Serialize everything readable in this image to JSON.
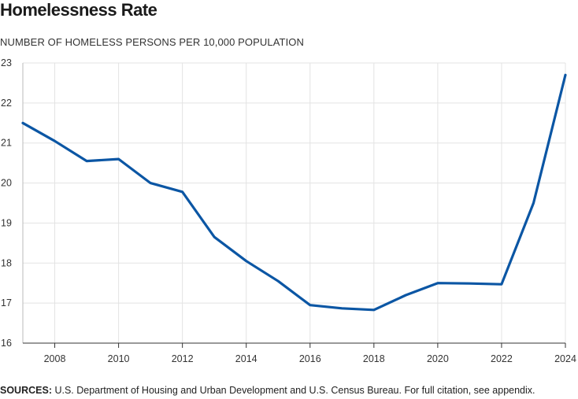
{
  "header": {
    "title": "Homelessness Rate",
    "subtitle": "NUMBER OF HOMELESS PERSONS PER 10,000 POPULATION"
  },
  "footer": {
    "sources_label": "SOURCES:",
    "sources_text": " U.S. Department of Housing and Urban Development and U.S. Census Bureau. For full citation, see appendix."
  },
  "colors": {
    "line": "#0b56a4",
    "grid": "#e3e3e3",
    "axis": "#333333"
  },
  "chart_data": {
    "type": "line",
    "title": "Homelessness Rate",
    "ylabel": "NUMBER OF HOMELESS PERSONS PER 10,000 POPULATION",
    "xlabel": "",
    "xlim": [
      2007,
      2024
    ],
    "ylim": [
      16,
      23
    ],
    "x_ticks": [
      2008,
      2010,
      2012,
      2014,
      2016,
      2018,
      2020,
      2022,
      2024
    ],
    "y_ticks": [
      16,
      17,
      18,
      19,
      20,
      21,
      22,
      23
    ],
    "grid": true,
    "series": [
      {
        "x": [
          2007,
          2008,
          2009,
          2010,
          2011,
          2012,
          2013,
          2014,
          2015,
          2016,
          2017,
          2018,
          2019,
          2020,
          2021,
          2022,
          2023,
          2024
        ],
        "values": [
          21.5,
          21.05,
          20.55,
          20.6,
          20.0,
          19.78,
          18.65,
          18.05,
          17.55,
          16.95,
          16.87,
          16.83,
          17.2,
          17.5,
          17.49,
          17.47,
          19.5,
          22.7
        ]
      }
    ]
  }
}
